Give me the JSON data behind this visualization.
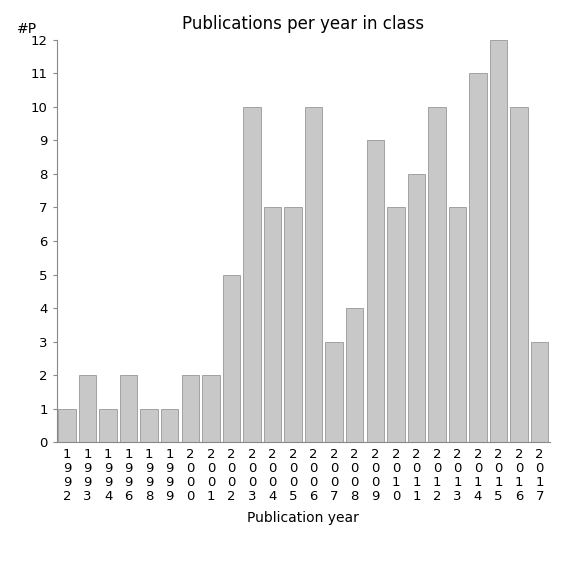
{
  "title": "Publications per year in class",
  "xlabel": "Publication year",
  "ylabel": "#P",
  "categories": [
    "1992",
    "1993",
    "1994",
    "1996",
    "1998",
    "1999",
    "2000",
    "2001",
    "2002",
    "2003",
    "2004",
    "2005",
    "2006",
    "2007",
    "2008",
    "2009",
    "2010",
    "2011",
    "2012",
    "2013",
    "2014",
    "2015",
    "2016",
    "2017"
  ],
  "values": [
    1,
    2,
    1,
    2,
    1,
    1,
    2,
    2,
    5,
    10,
    7,
    7,
    10,
    3,
    4,
    9,
    7,
    8,
    10,
    7,
    11,
    12,
    10,
    3
  ],
  "bar_color": "#c8c8c8",
  "bar_edge_color": "#888888",
  "ylim": [
    0,
    12
  ],
  "yticks": [
    0,
    1,
    2,
    3,
    4,
    5,
    6,
    7,
    8,
    9,
    10,
    11,
    12
  ],
  "background_color": "#ffffff",
  "title_fontsize": 12,
  "axis_label_fontsize": 10,
  "tick_fontsize": 9.5
}
